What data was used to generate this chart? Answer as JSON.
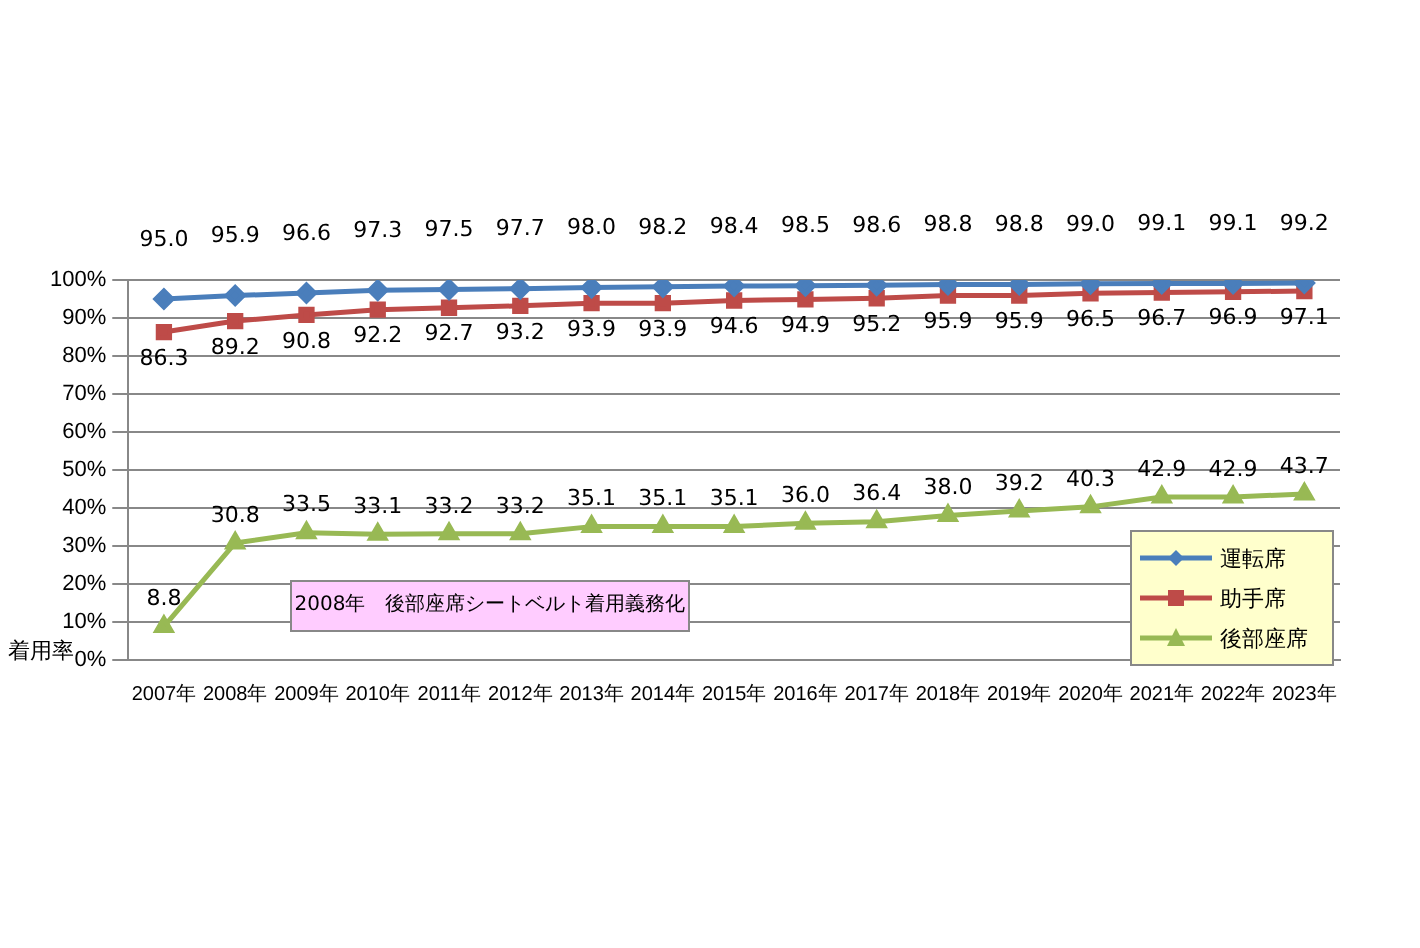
{
  "chart_data": {
    "type": "line",
    "ylabel": "着用率",
    "categories": [
      "2007年",
      "2008年",
      "2009年",
      "2010年",
      "2011年",
      "2012年",
      "2013年",
      "2014年",
      "2015年",
      "2016年",
      "2017年",
      "2018年",
      "2019年",
      "2020年",
      "2021年",
      "2022年",
      "2023年"
    ],
    "series": [
      {
        "name": "運転席",
        "color": "#4a7ebb",
        "marker": "diamond",
        "values": [
          95.0,
          95.9,
          96.6,
          97.3,
          97.5,
          97.7,
          98.0,
          98.2,
          98.4,
          98.5,
          98.6,
          98.8,
          98.8,
          99.0,
          99.1,
          99.1,
          99.2
        ],
        "value_labels": [
          "95.0",
          "95.9",
          "96.6",
          "97.3",
          "97.5",
          "97.7",
          "98.0",
          "98.2",
          "98.4",
          "98.5",
          "98.6",
          "98.8",
          "98.8",
          "99.0",
          "99.1",
          "99.1",
          "99.2"
        ]
      },
      {
        "name": "助手席",
        "color": "#be4b48",
        "marker": "square",
        "values": [
          86.3,
          89.2,
          90.8,
          92.2,
          92.7,
          93.2,
          93.9,
          93.9,
          94.6,
          94.9,
          95.2,
          95.9,
          95.9,
          96.5,
          96.7,
          96.9,
          97.1
        ],
        "value_labels": [
          "86.3",
          "89.2",
          "90.8",
          "92.2",
          "92.7",
          "93.2",
          "93.9",
          "93.9",
          "94.6",
          "94.9",
          "95.2",
          "95.9",
          "95.9",
          "96.5",
          "96.7",
          "96.9",
          "97.1"
        ]
      },
      {
        "name": "後部座席",
        "color": "#98b954",
        "marker": "triangle",
        "values": [
          8.8,
          30.8,
          33.5,
          33.1,
          33.2,
          33.2,
          35.1,
          35.1,
          35.1,
          36.0,
          36.4,
          38.0,
          39.2,
          40.3,
          42.9,
          42.9,
          43.7
        ],
        "value_labels": [
          "8.8",
          "30.8",
          "33.5",
          "33.1",
          "33.2",
          "33.2",
          "35.1",
          "35.1",
          "35.1",
          "36.0",
          "36.4",
          "38.0",
          "39.2",
          "40.3",
          "42.9",
          "42.9",
          "43.7"
        ]
      }
    ],
    "ylim": [
      0,
      100
    ],
    "yticks": [
      {
        "value": 0,
        "label": "0%"
      },
      {
        "value": 10,
        "label": "10%"
      },
      {
        "value": 20,
        "label": "20%"
      },
      {
        "value": 30,
        "label": "30%"
      },
      {
        "value": 40,
        "label": "40%"
      },
      {
        "value": 50,
        "label": "50%"
      },
      {
        "value": 60,
        "label": "60%"
      },
      {
        "value": 70,
        "label": "70%"
      },
      {
        "value": 80,
        "label": "80%"
      },
      {
        "value": 90,
        "label": "90%"
      },
      {
        "value": 100,
        "label": "100%"
      }
    ],
    "grid": "y",
    "legend": "bottom right",
    "annotations": [
      "2008年　後部座席シートベルト着用義務化"
    ]
  }
}
